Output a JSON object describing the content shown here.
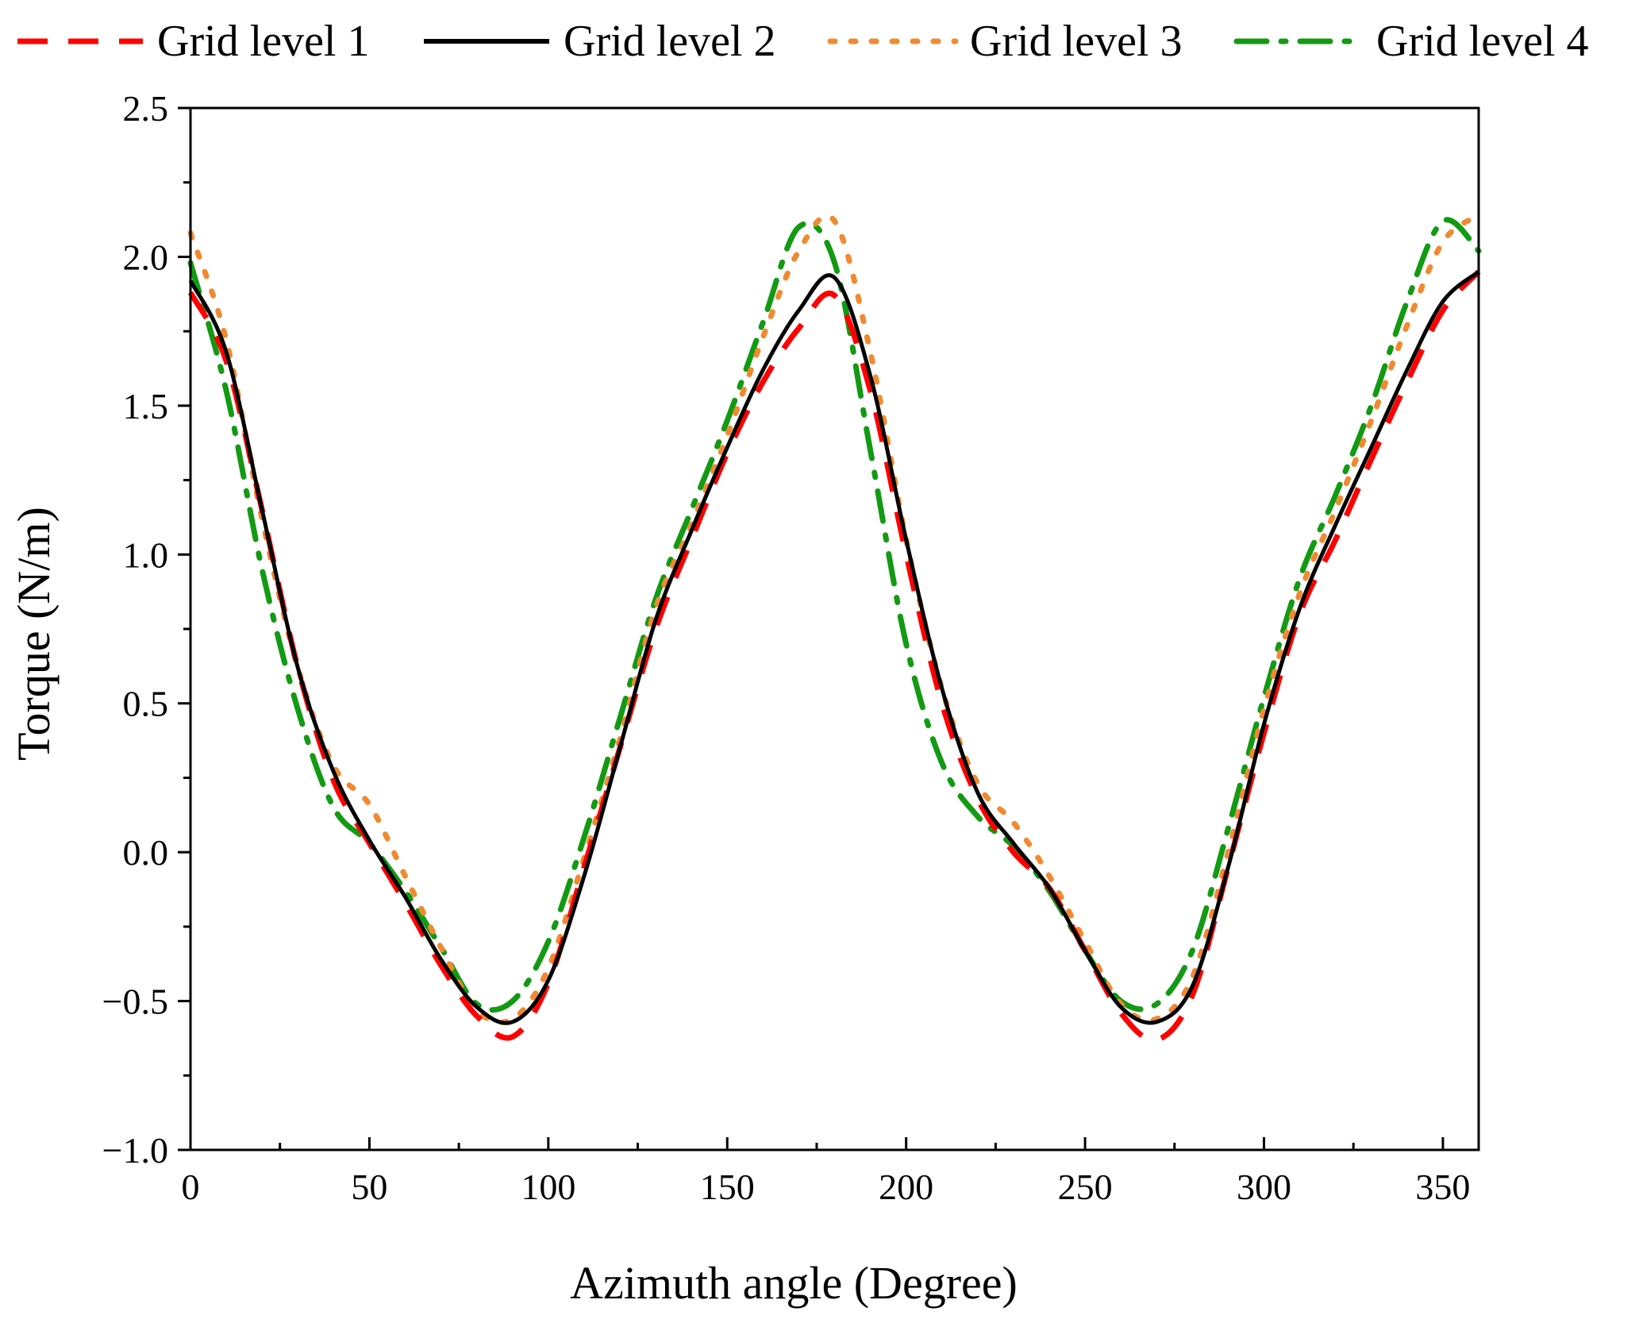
{
  "chart_data": {
    "type": "line",
    "title": "",
    "xlabel": "Azimuth angle (Degree)",
    "ylabel": "Torque (N/m)",
    "xlim": [
      0,
      360
    ],
    "ylim": [
      -1.0,
      2.5
    ],
    "x_ticks": [
      0,
      50,
      100,
      150,
      200,
      250,
      300,
      350
    ],
    "x_tick_labels": [
      "0",
      "50",
      "100",
      "150",
      "200",
      "250",
      "300",
      "350"
    ],
    "y_ticks": [
      -1.0,
      -0.5,
      0.0,
      0.5,
      1.0,
      1.5,
      2.0,
      2.5
    ],
    "y_tick_labels": [
      "−1.0",
      "−0.5",
      "0.0",
      "0.5",
      "1.0",
      "1.5",
      "2.0",
      "2.5"
    ],
    "grid": false,
    "legend_position": "top",
    "x": [
      0,
      10,
      20,
      30,
      40,
      50,
      60,
      70,
      80,
      90,
      100,
      110,
      120,
      130,
      140,
      150,
      160,
      170,
      180,
      190,
      200,
      210,
      220,
      230,
      240,
      250,
      260,
      270,
      280,
      290,
      300,
      310,
      320,
      330,
      340,
      350,
      360
    ],
    "series": [
      {
        "name": "Grid level 1",
        "color": "#ff0000",
        "dash": "dash",
        "values": [
          1.88,
          1.65,
          1.15,
          0.62,
          0.24,
          0.03,
          -0.17,
          -0.38,
          -0.55,
          -0.62,
          -0.44,
          -0.05,
          0.35,
          0.75,
          1.05,
          1.34,
          1.58,
          1.76,
          1.87,
          1.55,
          1.0,
          0.5,
          0.18,
          0.0,
          -0.12,
          -0.33,
          -0.54,
          -0.63,
          -0.48,
          -0.05,
          0.4,
          0.8,
          1.05,
          1.32,
          1.58,
          1.82,
          1.95
        ]
      },
      {
        "name": "Grid level 2",
        "color": "#000000",
        "dash": "solid",
        "values": [
          1.92,
          1.68,
          1.15,
          0.62,
          0.27,
          0.04,
          -0.15,
          -0.36,
          -0.52,
          -0.57,
          -0.43,
          -0.08,
          0.35,
          0.78,
          1.08,
          1.36,
          1.62,
          1.82,
          1.93,
          1.6,
          1.05,
          0.55,
          0.2,
          0.03,
          -0.12,
          -0.33,
          -0.52,
          -0.57,
          -0.45,
          -0.05,
          0.43,
          0.82,
          1.1,
          1.36,
          1.62,
          1.85,
          1.95
        ]
      },
      {
        "name": "Grid level 3",
        "color": "#f08a30",
        "dash": "dot",
        "values": [
          2.08,
          1.72,
          1.12,
          0.62,
          0.29,
          0.16,
          -0.08,
          -0.32,
          -0.53,
          -0.56,
          -0.39,
          -0.02,
          0.38,
          0.82,
          1.1,
          1.4,
          1.73,
          2.02,
          2.12,
          1.68,
          1.05,
          0.55,
          0.23,
          0.1,
          -0.08,
          -0.3,
          -0.51,
          -0.56,
          -0.42,
          0.0,
          0.48,
          0.87,
          1.15,
          1.45,
          1.77,
          2.05,
          2.14
        ]
      },
      {
        "name": "Grid level 4",
        "color": "#139a13",
        "dash": "dashdot",
        "values": [
          1.98,
          1.55,
          0.95,
          0.48,
          0.15,
          0.03,
          -0.13,
          -0.32,
          -0.51,
          -0.5,
          -0.3,
          0.05,
          0.45,
          0.85,
          1.15,
          1.45,
          1.78,
          2.1,
          1.98,
          1.35,
          0.7,
          0.3,
          0.12,
          0.02,
          -0.13,
          -0.33,
          -0.5,
          -0.51,
          -0.33,
          0.08,
          0.52,
          0.92,
          1.2,
          1.5,
          1.85,
          2.12,
          2.02
        ]
      }
    ]
  }
}
